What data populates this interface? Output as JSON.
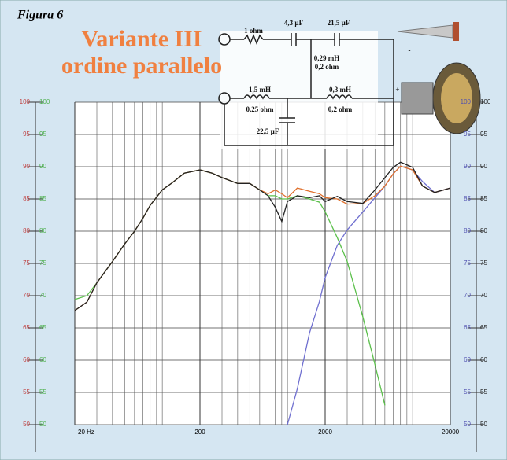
{
  "chart_data": {
    "type": "line",
    "label": "Figura 6",
    "title": "Variante III",
    "subtitle": "ordine parallelo",
    "annotations": [
      "1 ohm",
      "4,3 µF",
      "21,5 µF",
      "0,29 mH",
      "0,2 ohm",
      "1,5 mH",
      "0,25 ohm",
      "0,3 mH",
      "0,2 ohm",
      "22,5 µF",
      "+",
      "-"
    ],
    "x": [
      20,
      25,
      30,
      40,
      50,
      60,
      70,
      80,
      100,
      120,
      150,
      200,
      250,
      300,
      400,
      500,
      600,
      700,
      800,
      900,
      1000,
      1200,
      1500,
      1800,
      2000,
      2500,
      3000,
      4000,
      5000,
      6000,
      7000,
      8000,
      10000,
      12000,
      15000,
      20000
    ],
    "series": [
      {
        "name": "black",
        "color": "#222222",
        "values": [
          67.7,
          69,
          72,
          75.3,
          78,
          80,
          82,
          84,
          86.4,
          87.5,
          89,
          89.5,
          89,
          88.3,
          87.4,
          87.4,
          86.4,
          85.5,
          83.7,
          81.5,
          84.6,
          85.5,
          85.2,
          85.5,
          84.6,
          85.4,
          84.6,
          84.3,
          86.4,
          88.3,
          89.9,
          90.7,
          89.9,
          87,
          86,
          86.7
        ]
      },
      {
        "name": "orange",
        "color": "#e0702c",
        "values": [
          67.7,
          69,
          72,
          75.3,
          78,
          80,
          82,
          84,
          86.4,
          87.5,
          89,
          89.5,
          89,
          88.3,
          87.4,
          87.4,
          86.4,
          85.8,
          86.4,
          85.8,
          85.2,
          86.7,
          86.2,
          85.8,
          85.2,
          85,
          84.2,
          84.3,
          85.5,
          87,
          88.9,
          90.1,
          89.5,
          87,
          86,
          86.7
        ]
      },
      {
        "name": "green",
        "color": "#5cc04c",
        "values": [
          69.4,
          70,
          72,
          75.3,
          78,
          80,
          82,
          84,
          86.4,
          87.5,
          89,
          89.5,
          89,
          88.3,
          87.4,
          87.4,
          86.4,
          85.5,
          85.5,
          85,
          85,
          85.5,
          85,
          84.5,
          83,
          79,
          75.3,
          66.7,
          59.3,
          53,
          null,
          null,
          null,
          null,
          null,
          null
        ]
      },
      {
        "name": "blue",
        "color": "#7070d0",
        "values": [
          null,
          null,
          null,
          null,
          null,
          null,
          null,
          null,
          null,
          null,
          null,
          null,
          null,
          null,
          null,
          null,
          null,
          null,
          null,
          null,
          50,
          55.6,
          64.2,
          69.1,
          72.8,
          77.8,
          80.2,
          83,
          85.2,
          87,
          88.9,
          90.1,
          89.5,
          87.7,
          86,
          86.7
        ]
      }
    ],
    "log_x": true,
    "xlim": [
      20,
      20000
    ],
    "xticks": [
      {
        "value": 20,
        "label": "20 Hz"
      },
      200,
      2000,
      20000
    ],
    "minor_xgrid": [
      30,
      40,
      50,
      60,
      70,
      80,
      90,
      100,
      300,
      400,
      500,
      600,
      700,
      800,
      900,
      1000,
      3000,
      4000,
      5000,
      6000,
      7000,
      8000,
      9000,
      10000
    ],
    "ylim": [
      50,
      100
    ],
    "yticks": [
      50,
      55,
      60,
      65,
      70,
      75,
      80,
      85,
      90,
      95,
      100
    ],
    "ytick_colors": [
      "#c04040",
      "#50b050",
      "#5050b0",
      "#222222"
    ],
    "grid": true
  }
}
